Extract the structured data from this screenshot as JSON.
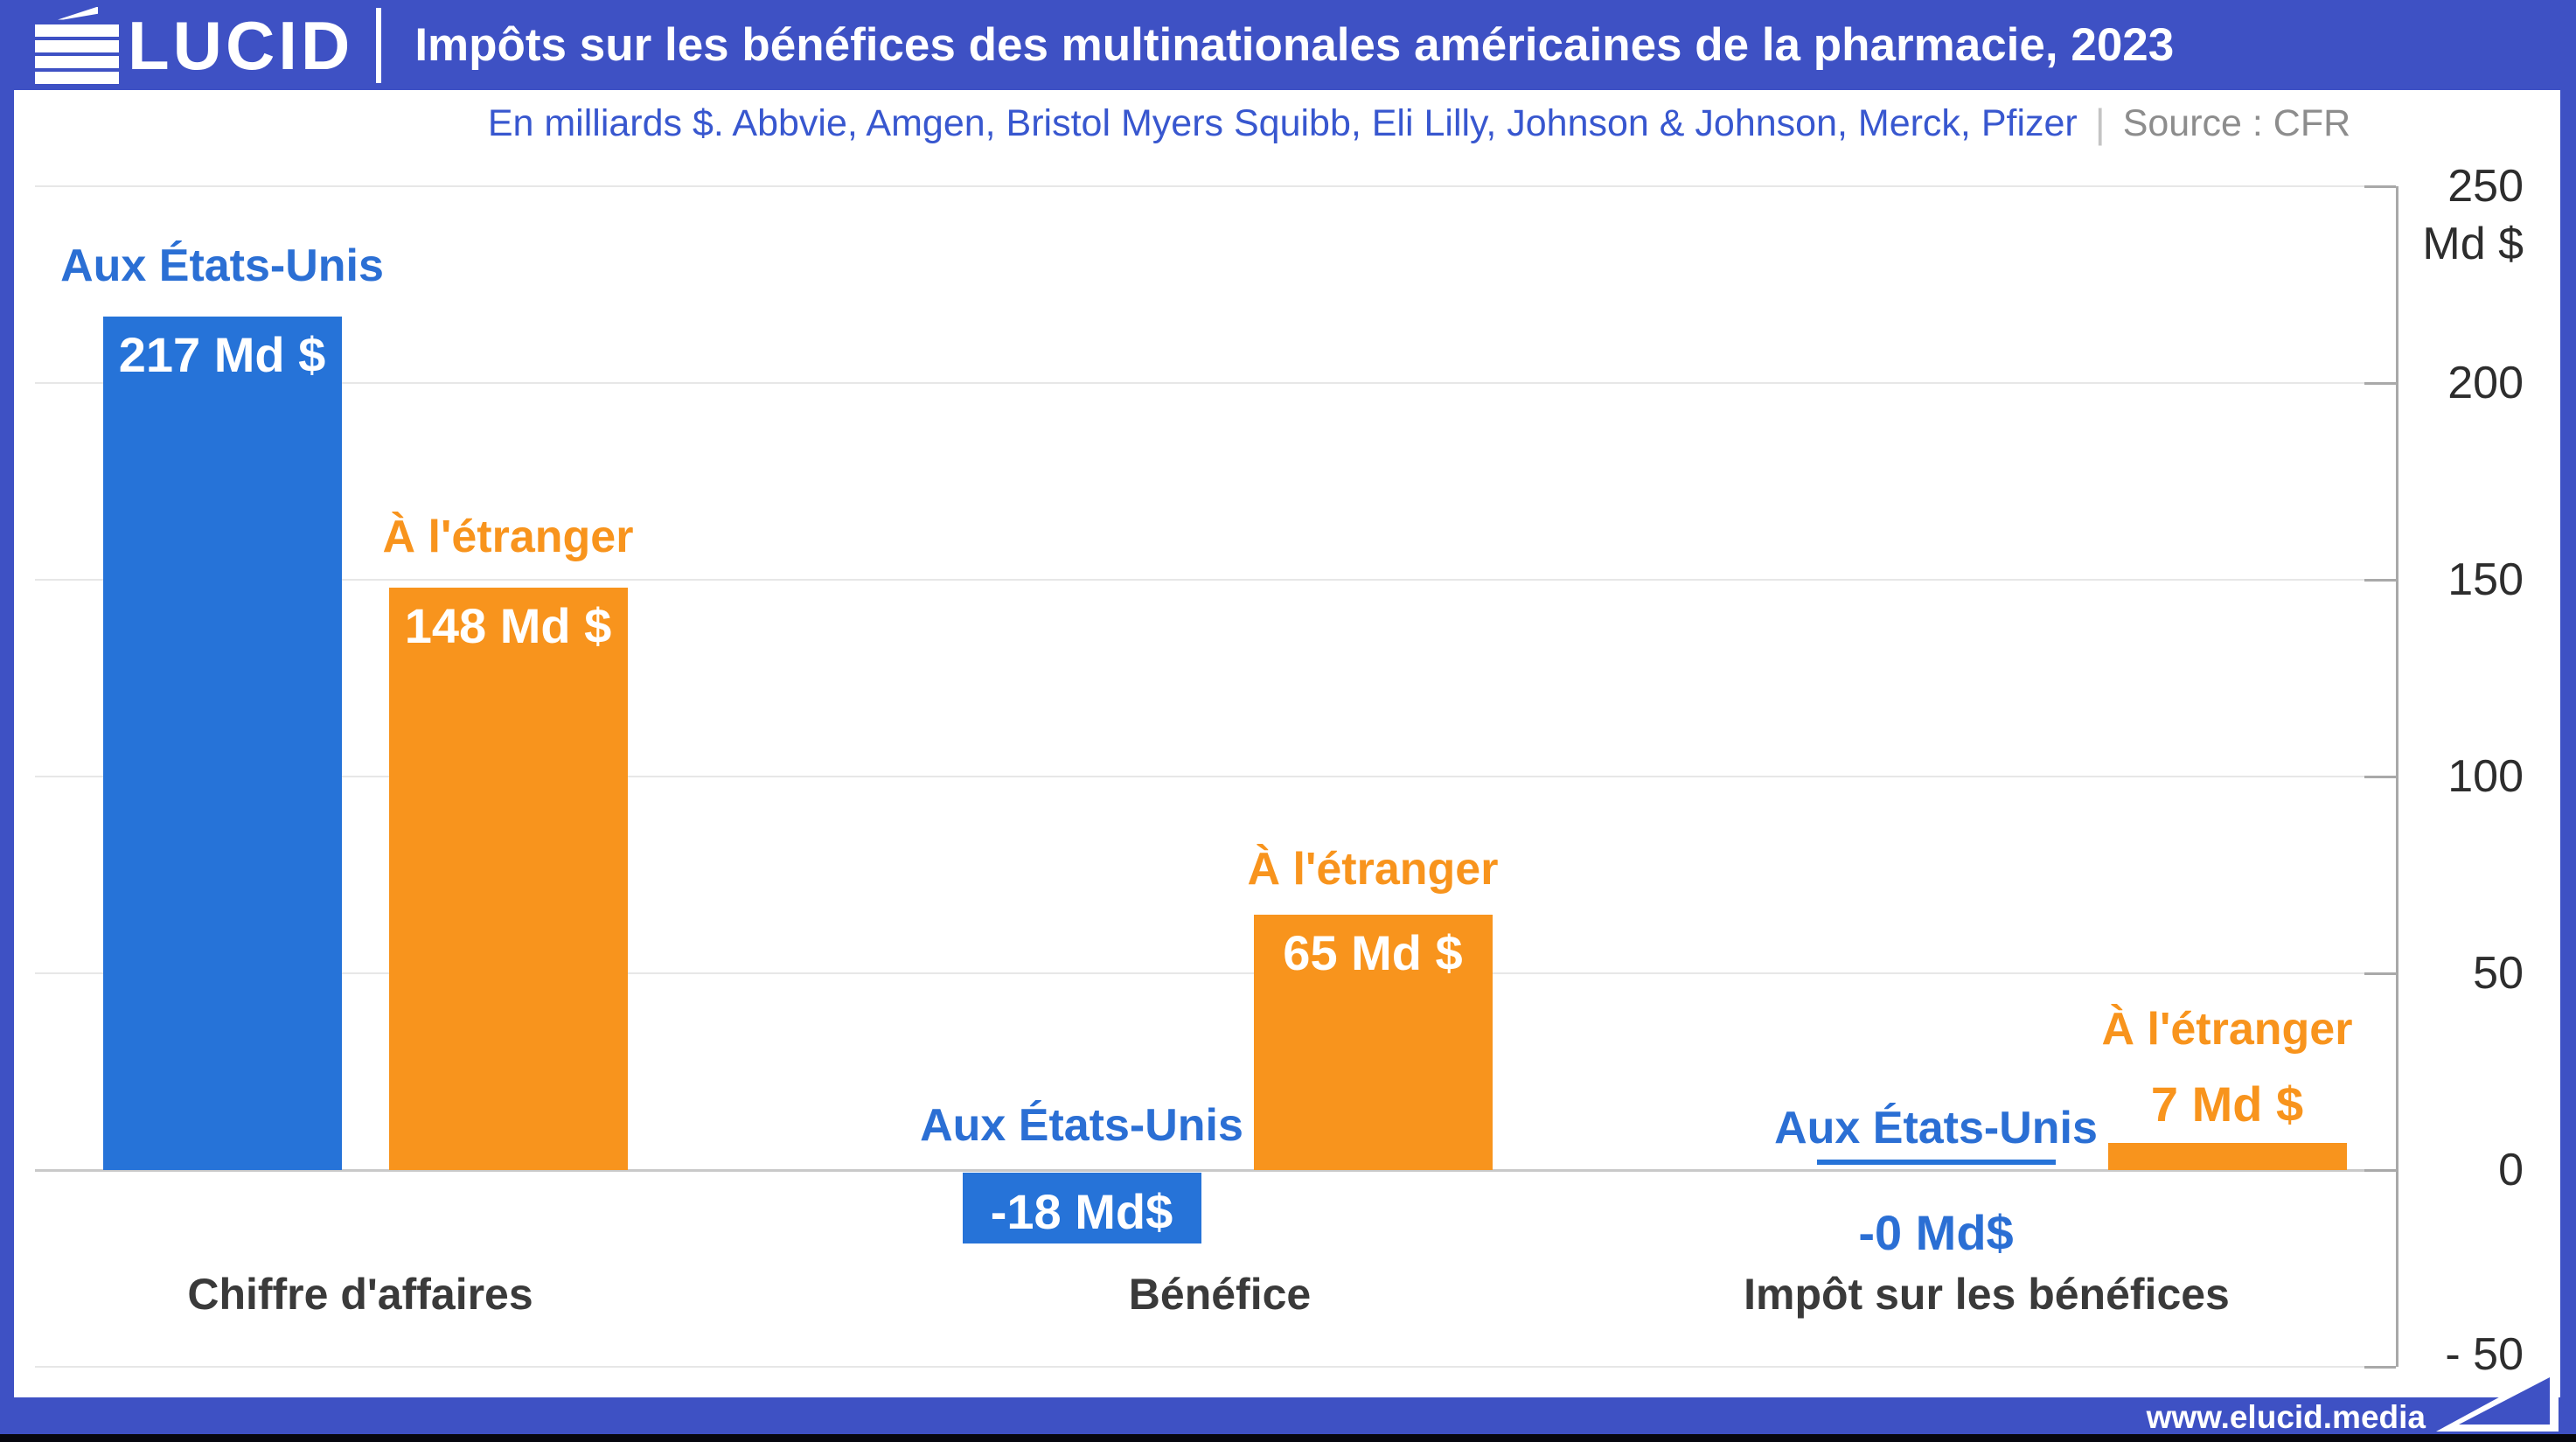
{
  "header": {
    "logo": {
      "text": "ÉLUCID",
      "rest": "LUCID"
    },
    "title": "Impôts sur les bénéfices des multinationales américaines de la pharmacie, 2023"
  },
  "subtitle": {
    "text": "En milliards $. Abbvie, Amgen, Bristol Myers Squibb, Eli Lilly, Johnson & Johnson, Merck, Pfizer",
    "separator": "|",
    "source": "Source : CFR"
  },
  "footer": {
    "site": "www.elucid.media"
  },
  "colors": {
    "brand_blue": "#3e51c4",
    "bar_blue": "#2673d8",
    "bar_orange": "#f8941d",
    "label_blue": "#2b6fd4",
    "label_orange": "#f8941d",
    "subtitle_blue": "#3857cf",
    "source_gray": "#8d8d8d",
    "grid": "#e7e7e7",
    "zero_line": "#c9c9c9",
    "axis": "#a9a9a9",
    "tick_text": "#2d2d2d",
    "category_text": "#3a3a3a",
    "footer_dark": "#06070e"
  },
  "chart_data": {
    "type": "bar",
    "title": "Impôts sur les bénéfices des multinationales américaines de la pharmacie, 2023",
    "unit": "Md $",
    "series_names": [
      "Aux États-Unis",
      "À l'étranger"
    ],
    "y_axis": {
      "side": "right",
      "range": [
        -50,
        250
      ],
      "ticks": [
        250,
        200,
        150,
        100,
        50,
        0,
        -50
      ],
      "tick_labels": [
        "250",
        "200",
        "150",
        "100",
        "50",
        "0",
        "- 50"
      ],
      "unit_label": "Md $",
      "grid": true
    },
    "groups": [
      {
        "category": "Chiffre d'affaires",
        "bars": [
          {
            "series": "Aux États-Unis",
            "value": 217,
            "label": "217 Md $"
          },
          {
            "series": "À l'étranger",
            "value": 148,
            "label": "148 Md $"
          }
        ]
      },
      {
        "category": "Bénéfice",
        "bars": [
          {
            "series": "Aux États-Unis",
            "value": -18,
            "label": "-18 Md$"
          },
          {
            "series": "À l'étranger",
            "value": 65,
            "label": "65 Md $"
          }
        ]
      },
      {
        "category": "Impôt sur les bénéfices",
        "bars": [
          {
            "series": "Aux États-Unis",
            "value": 0,
            "label": "-0 Md$"
          },
          {
            "series": "À l'étranger",
            "value": 7,
            "label": "7 Md $"
          }
        ]
      }
    ]
  }
}
